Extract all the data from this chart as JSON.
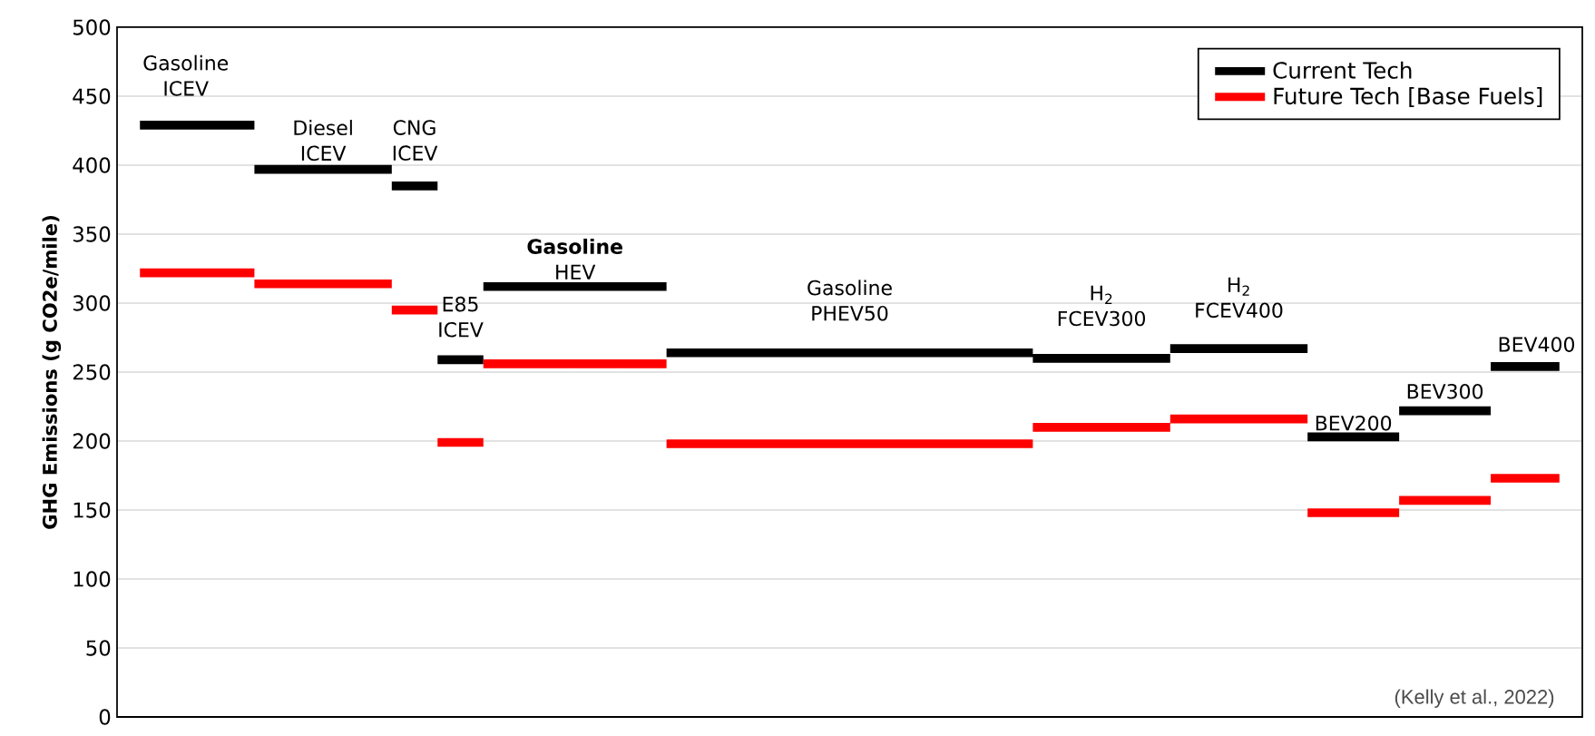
{
  "chart_data": {
    "type": "step",
    "ylabel": "GHG Emissions (g CO2e/mile)",
    "categories": [
      null,
      null,
      null,
      null,
      null,
      null,
      null,
      null,
      null,
      null,
      null,
      null,
      null,
      null,
      null,
      null,
      null,
      null,
      null,
      null,
      null,
      null,
      null,
      null,
      null,
      null,
      null,
      null,
      null,
      null,
      null,
      null
    ],
    "series": [
      {
        "name": "Current Tech",
        "color": "#000000",
        "values": [
          429,
          429,
          429,
          397,
          397,
          397,
          385,
          259,
          312,
          312,
          312,
          312,
          264,
          264,
          264,
          264,
          264,
          264,
          264,
          264,
          260,
          260,
          260,
          267,
          267,
          267,
          203,
          203,
          222,
          222,
          254,
          254
        ]
      },
      {
        "name": "Future Tech [Base Fuels]",
        "color": "#ff0000",
        "values": [
          322,
          322,
          322,
          314,
          314,
          314,
          295,
          199,
          256,
          256,
          256,
          256,
          198,
          198,
          198,
          198,
          198,
          198,
          198,
          198,
          210,
          210,
          210,
          216,
          216,
          216,
          148,
          148,
          157,
          157,
          173,
          173
        ]
      }
    ],
    "ylim": [
      0,
      500
    ],
    "yticks": [
      0,
      50,
      100,
      150,
      200,
      250,
      300,
      350,
      400,
      450,
      500
    ],
    "grid": "y",
    "legend": "top right",
    "annotations": [
      "Gasoline ICEV",
      "Diesel ICEV",
      "CNG ICEV",
      "E85 ICEV",
      "**Gasoline** HEV",
      "Gasoline PHEV50",
      "H$_{2}$ FCEV300",
      "H$_{2}$ FCEV400",
      "BEV200",
      "BEV300",
      "BEV400",
      "(Kelly et al., 2022)"
    ]
  }
}
